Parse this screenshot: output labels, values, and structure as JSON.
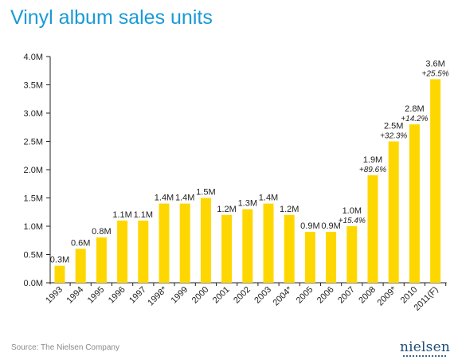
{
  "header": {
    "title": "Vinyl album sales units"
  },
  "footer": {
    "source": "Source: The Nielsen Company",
    "logo_text": "nielsen"
  },
  "colors": {
    "bar": "#ffd700",
    "title": "#1a9ad6",
    "axis": "#222222",
    "logo": "#1f4e79"
  },
  "chart_data": {
    "type": "bar",
    "title": "Vinyl album sales units",
    "xlabel": "",
    "ylabel": "",
    "ylim": [
      0,
      4.0
    ],
    "yticks": [
      0.0,
      0.5,
      1.0,
      1.5,
      2.0,
      2.5,
      3.0,
      3.5,
      4.0
    ],
    "ytick_labels": [
      "0.0M",
      "0.5M",
      "1.0M",
      "1.5M",
      "2.0M",
      "2.5M",
      "3.0M",
      "3.5M",
      "4.0M"
    ],
    "grid": false,
    "categories": [
      "1993",
      "1994",
      "1995",
      "1996",
      "1997",
      "1998*",
      "1999",
      "2000",
      "2001",
      "2002",
      "2003",
      "2004*",
      "2005",
      "2006",
      "2007",
      "2008",
      "2009*",
      "2010",
      "2011(F)"
    ],
    "values": [
      0.3,
      0.6,
      0.8,
      1.1,
      1.1,
      1.4,
      1.4,
      1.5,
      1.2,
      1.3,
      1.4,
      1.2,
      0.9,
      0.9,
      1.0,
      1.9,
      2.5,
      2.8,
      3.6
    ],
    "value_labels": [
      "0.3M",
      "0.6M",
      "0.8M",
      "1.1M",
      "1.1M",
      "1.4M",
      "1.4M",
      "1.5M",
      "1.2M",
      "1.3M",
      "1.4M",
      "1.2M",
      "0.9M",
      "0.9M",
      "1.0M",
      "1.9M",
      "2.5M",
      "2.8M",
      "3.6M"
    ],
    "change_labels": [
      "",
      "",
      "",
      "",
      "",
      "",
      "",
      "",
      "",
      "",
      "",
      "",
      "",
      "",
      "+15.4%",
      "+89.6%",
      "+32.3%",
      "+14.2%",
      "+25.5%"
    ]
  }
}
